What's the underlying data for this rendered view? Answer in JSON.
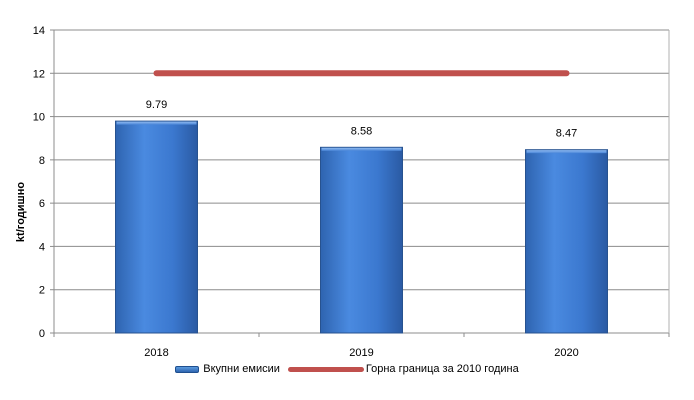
{
  "chart_data": {
    "type": "bar",
    "categories": [
      "2018",
      "2019",
      "2020"
    ],
    "series": [
      {
        "name": "Вкупни емисии",
        "type": "bar",
        "values": [
          9.79,
          8.58,
          8.47
        ],
        "color": "#3a78d0"
      },
      {
        "name": "Горна граница за 2010 година",
        "type": "line",
        "values": [
          12,
          12,
          12
        ],
        "color": "#c0504d"
      }
    ],
    "data_labels": [
      "9.79",
      "8.58",
      "8.47"
    ],
    "ylabel": "kt/годишно",
    "xlabel": "",
    "ylim": [
      0,
      14
    ],
    "yticks": [
      0,
      2,
      4,
      6,
      8,
      10,
      12,
      14
    ],
    "grid": true,
    "legend_position": "bottom"
  }
}
